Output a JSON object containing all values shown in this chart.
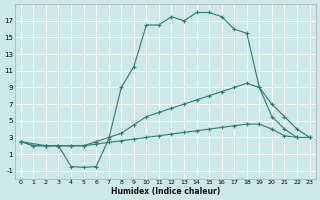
{
  "xlabel": "Humidex (Indice chaleur)",
  "background_color": "#cce8e8",
  "grid_color": "#ffffff",
  "line_color": "#2e7d6e",
  "xlim": [
    -0.5,
    23.5
  ],
  "ylim": [
    -2,
    19
  ],
  "xticks": [
    0,
    1,
    2,
    3,
    4,
    5,
    6,
    7,
    8,
    9,
    10,
    11,
    12,
    13,
    14,
    15,
    16,
    17,
    18,
    19,
    20,
    21,
    22,
    23
  ],
  "yticks": [
    -1,
    1,
    3,
    5,
    7,
    9,
    11,
    13,
    15,
    17
  ],
  "series": [
    {
      "x": [
        0,
        1,
        2,
        3,
        4,
        5,
        6,
        7,
        8,
        9,
        10,
        11,
        12,
        13,
        14,
        15,
        16,
        17,
        18,
        19,
        20,
        21,
        22,
        23
      ],
      "y": [
        2.5,
        2.0,
        2.0,
        2.0,
        2.0,
        2.0,
        2.2,
        2.4,
        2.6,
        2.8,
        3.0,
        3.2,
        3.4,
        3.6,
        3.8,
        4.0,
        4.2,
        4.4,
        4.6,
        4.6,
        4.0,
        3.2,
        3.0,
        3.0
      ]
    },
    {
      "x": [
        0,
        1,
        2,
        3,
        4,
        5,
        6,
        7,
        8,
        9,
        10,
        11,
        12,
        13,
        14,
        15,
        16,
        17,
        18,
        19,
        20,
        21,
        22,
        23
      ],
      "y": [
        2.5,
        2.0,
        2.0,
        2.0,
        2.0,
        2.0,
        2.5,
        3.0,
        3.5,
        4.5,
        5.5,
        6.0,
        6.5,
        7.0,
        7.5,
        8.0,
        8.5,
        9.0,
        9.5,
        9.0,
        7.0,
        5.5,
        4.0,
        3.0
      ]
    },
    {
      "x": [
        0,
        2,
        3,
        4,
        5,
        6,
        7,
        8,
        9,
        10,
        11,
        12,
        13,
        14,
        15,
        16,
        17,
        18,
        19,
        20,
        21,
        22
      ],
      "y": [
        2.5,
        2.0,
        2.0,
        -0.5,
        -0.6,
        -0.5,
        2.8,
        9.0,
        11.5,
        16.5,
        16.5,
        17.5,
        17.0,
        18.0,
        18.0,
        17.5,
        16.0,
        15.5,
        9.0,
        5.5,
        4.0,
        3.0
      ]
    }
  ]
}
